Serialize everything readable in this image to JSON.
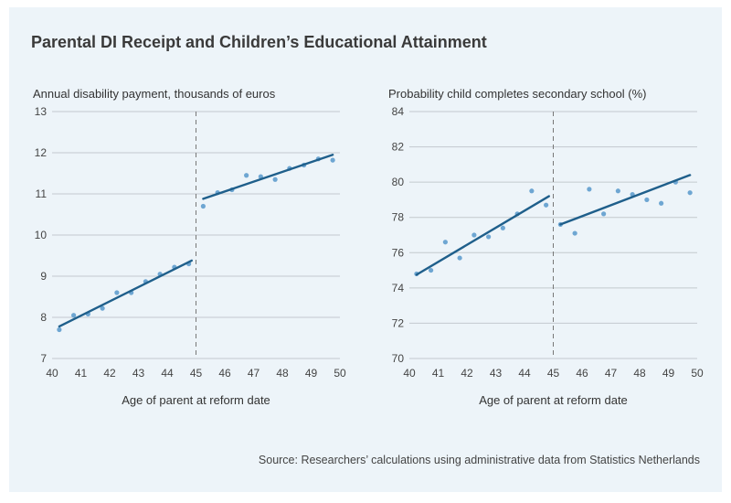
{
  "title": "Parental DI Receipt and Children’s Educational Attainment",
  "source": "Source: Researchers’ calculations using administrative data from Statistics Netherlands",
  "colors": {
    "panel_bg": "#edf4f9",
    "line": "#1f5f8b",
    "point": "#6ea6d2",
    "grid": "#c3c9ce",
    "cutoff": "#777777"
  },
  "chart_data": [
    {
      "type": "scatter",
      "title": "",
      "ylabel": "Annual disability payment, thousands of euros",
      "xlabel": "Age of parent at reform date",
      "xlim": [
        40,
        50
      ],
      "ylim": [
        7,
        13
      ],
      "xticks": [
        40,
        41,
        42,
        43,
        44,
        45,
        46,
        47,
        48,
        49,
        50
      ],
      "yticks": [
        7,
        8,
        9,
        10,
        11,
        12,
        13
      ],
      "cutoff": 45,
      "points": {
        "x": [
          40.25,
          40.75,
          41.25,
          41.75,
          42.25,
          42.75,
          43.25,
          43.75,
          44.25,
          44.75,
          45.25,
          45.75,
          46.25,
          46.75,
          47.25,
          47.75,
          48.25,
          48.75,
          49.25,
          49.75
        ],
        "y": [
          7.7,
          8.05,
          8.08,
          8.22,
          8.6,
          8.6,
          8.87,
          9.05,
          9.22,
          9.3,
          10.7,
          11.03,
          11.1,
          11.45,
          11.42,
          11.35,
          11.62,
          11.7,
          11.85,
          11.82
        ]
      },
      "fit_lines": [
        {
          "x": [
            40.25,
            44.85
          ],
          "y": [
            7.78,
            9.38
          ]
        },
        {
          "x": [
            45.25,
            49.75
          ],
          "y": [
            10.88,
            11.95
          ]
        }
      ]
    },
    {
      "type": "scatter",
      "title": "",
      "ylabel": "Probability child completes secondary school (%)",
      "xlabel": "Age of parent at reform date",
      "xlim": [
        40,
        50
      ],
      "ylim": [
        70,
        84
      ],
      "xticks": [
        40,
        41,
        42,
        43,
        44,
        45,
        46,
        47,
        48,
        49,
        50
      ],
      "yticks": [
        70,
        72,
        74,
        76,
        78,
        80,
        82,
        84
      ],
      "cutoff": 45,
      "points": {
        "x": [
          40.25,
          40.75,
          41.25,
          41.75,
          42.25,
          42.75,
          43.25,
          43.75,
          44.25,
          44.75,
          45.25,
          45.75,
          46.25,
          46.75,
          47.25,
          47.75,
          48.25,
          48.75,
          49.25,
          49.75
        ],
        "y": [
          74.8,
          75.0,
          76.6,
          75.7,
          77.0,
          76.9,
          77.4,
          78.2,
          79.5,
          78.7,
          77.6,
          77.1,
          79.6,
          78.2,
          79.5,
          79.3,
          79.0,
          78.8,
          80.0,
          79.4
        ]
      },
      "fit_lines": [
        {
          "x": [
            40.25,
            44.85
          ],
          "y": [
            74.75,
            79.2
          ]
        },
        {
          "x": [
            45.25,
            49.75
          ],
          "y": [
            77.6,
            80.4
          ]
        }
      ]
    }
  ]
}
